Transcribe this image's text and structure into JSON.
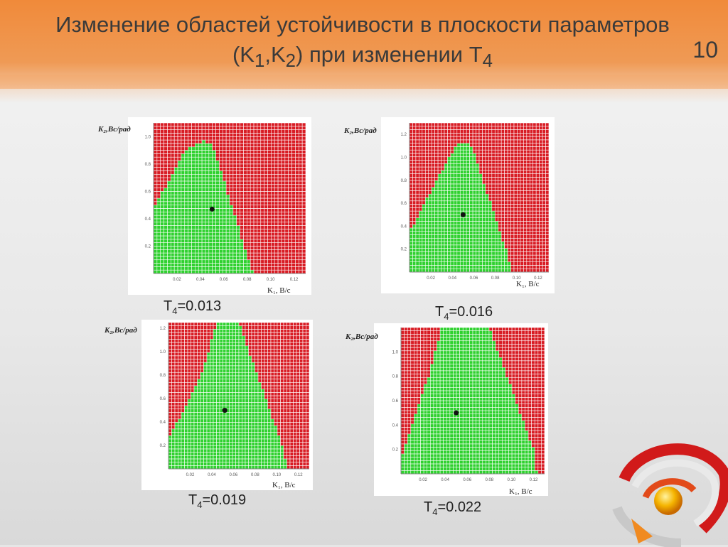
{
  "slide": {
    "title_part1": "Изменение областей устойчивости в плоскости параметров (K",
    "title_sub1": "1",
    "title_part2": ",K",
    "title_sub2": "2",
    "title_part3": ") при изменении T",
    "title_sub3": "4",
    "number": "10"
  },
  "colors": {
    "stable": "#2fd12f",
    "unstable": "#d81c24",
    "grid": "#ffffff",
    "header": "#f08a3a"
  },
  "chart_data": [
    {
      "type": "heatmap",
      "caption_var": "T",
      "caption_sub": "4",
      "caption_val": "=0.013",
      "xlabel": "K₁, В/с",
      "ylabel": "K₂,Вс/рад",
      "xlim": [
        0,
        0.13
      ],
      "ylim": [
        0,
        1.1
      ],
      "xticks": [
        "0.02",
        "0.04",
        "0.06",
        "0.08",
        "0.10",
        "0.12"
      ],
      "xtick_values": [
        0.02,
        0.04,
        0.06,
        0.08,
        0.1,
        0.12
      ],
      "yticks": [
        "0.2",
        "0.4",
        "0.6",
        "0.8",
        "1.0"
      ],
      "ytick_values": [
        0.2,
        0.4,
        0.6,
        0.8,
        1.0
      ],
      "stable_region": [
        [
          0.0,
          0.0
        ],
        [
          0.0,
          0.47
        ],
        [
          0.027,
          0.9
        ],
        [
          0.043,
          0.97
        ],
        [
          0.05,
          0.95
        ],
        [
          0.085,
          0.0
        ]
      ],
      "operating_point": {
        "x": 0.05,
        "y": 0.47
      },
      "grid": true
    },
    {
      "type": "heatmap",
      "caption_var": "T",
      "caption_sub": "4",
      "caption_val": "=0.016",
      "xlabel": "K₁, В/с",
      "ylabel": "K₂,Вс/рад",
      "xlim": [
        0,
        0.13
      ],
      "ylim": [
        0,
        1.3
      ],
      "xticks": [
        "0.02",
        "0.04",
        "0.06",
        "0.08",
        "0.10",
        "0.12"
      ],
      "xtick_values": [
        0.02,
        0.04,
        0.06,
        0.08,
        0.1,
        0.12
      ],
      "yticks": [
        "0.2",
        "0.4",
        "0.6",
        "0.8",
        "1.0",
        "1.2"
      ],
      "yticks_shown": [
        "0.2",
        "0.4",
        "0.6",
        "0.8",
        "1.0",
        "1.2"
      ],
      "ytick_values": [
        0.2,
        0.4,
        0.6,
        0.8,
        1.0,
        1.2
      ],
      "stable_region": [
        [
          0.0,
          0.0
        ],
        [
          0.0,
          0.35
        ],
        [
          0.03,
          0.88
        ],
        [
          0.045,
          1.12
        ],
        [
          0.057,
          1.12
        ],
        [
          0.09,
          0.2
        ],
        [
          0.095,
          0.0
        ]
      ],
      "operating_point": {
        "x": 0.05,
        "y": 0.5
      },
      "grid": true
    },
    {
      "type": "heatmap",
      "caption_var": "T",
      "caption_sub": "4",
      "caption_val": "=0.019",
      "xlabel": "K₁, В/с",
      "ylabel": "K₂,Вс/рад",
      "xlim": [
        0,
        0.13
      ],
      "ylim": [
        0,
        1.25
      ],
      "xticks": [
        "0.02",
        "0.04",
        "0.06",
        "0.08",
        "0.10",
        "0.12"
      ],
      "xtick_values": [
        0.02,
        0.04,
        0.06,
        0.08,
        0.1,
        0.12
      ],
      "yticks": [
        "0.2",
        "0.4",
        "0.6",
        "0.8",
        "1.0",
        "1.2"
      ],
      "ytick_values": [
        0.2,
        0.4,
        0.6,
        0.8,
        1.0,
        1.2
      ],
      "stable_region": [
        [
          0.0,
          0.0
        ],
        [
          0.0,
          0.25
        ],
        [
          0.03,
          0.8
        ],
        [
          0.045,
          1.25
        ],
        [
          0.065,
          1.25
        ],
        [
          0.105,
          0.2
        ],
        [
          0.11,
          0.0
        ]
      ],
      "operating_point": {
        "x": 0.052,
        "y": 0.5
      },
      "grid": true
    },
    {
      "type": "heatmap",
      "caption_var": "T",
      "caption_sub": "4",
      "caption_val": "=0.022",
      "xlabel": "K₁, В/с",
      "ylabel": "K₂,Вс/рад",
      "xlim": [
        0,
        0.13
      ],
      "ylim": [
        0,
        1.2
      ],
      "xticks": [
        "0.02",
        "0.04",
        "0.06",
        "0.08",
        "0.10",
        "0.12"
      ],
      "xtick_values": [
        0.02,
        0.04,
        0.06,
        0.08,
        0.1,
        0.12
      ],
      "yticks": [
        "0.2",
        "0.4",
        "0.6",
        "0.8",
        "1.0"
      ],
      "ytick_values": [
        0.2,
        0.4,
        0.6,
        0.8,
        1.0
      ],
      "stable_region": [
        [
          0.0,
          0.0
        ],
        [
          0.0,
          0.12
        ],
        [
          0.025,
          0.8
        ],
        [
          0.037,
          1.2
        ],
        [
          0.08,
          1.2
        ],
        [
          0.12,
          0.2
        ],
        [
          0.123,
          0.0
        ]
      ],
      "operating_point": {
        "x": 0.05,
        "y": 0.5
      },
      "grid": true
    }
  ]
}
